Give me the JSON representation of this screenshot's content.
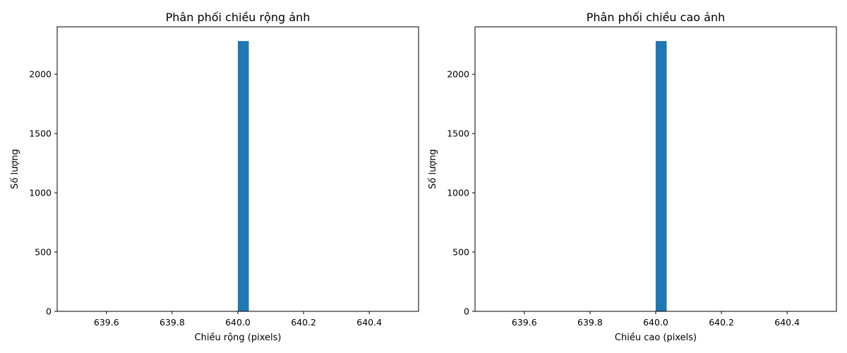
{
  "chart_data": [
    {
      "type": "bar",
      "title": "Phân phối chiều rộng ảnh",
      "xlabel": "Chiều rộng (pixels)",
      "ylabel": "Số lượng",
      "xlim": [
        639.45,
        640.55
      ],
      "ylim": [
        0,
        2400
      ],
      "xticks": [
        639.6,
        639.8,
        640.0,
        640.2,
        640.4
      ],
      "xtick_labels": [
        "639.6",
        "639.8",
        "640.0",
        "640.2",
        "640.4"
      ],
      "yticks": [
        0,
        500,
        1000,
        1500,
        2000
      ],
      "ytick_labels": [
        "0",
        "500",
        "1000",
        "1500",
        "2000"
      ],
      "bars": [
        {
          "x_start": 640.0,
          "x_end": 640.0333,
          "value": 2280
        }
      ],
      "color": "#1f77b4",
      "grid": false
    },
    {
      "type": "bar",
      "title": "Phân phối chiều cao ảnh",
      "xlabel": "Chiều cao (pixels)",
      "ylabel": "Số lượng",
      "xlim": [
        639.45,
        640.55
      ],
      "ylim": [
        0,
        2400
      ],
      "xticks": [
        639.6,
        639.8,
        640.0,
        640.2,
        640.4
      ],
      "xtick_labels": [
        "639.6",
        "639.8",
        "640.0",
        "640.2",
        "640.4"
      ],
      "yticks": [
        0,
        500,
        1000,
        1500,
        2000
      ],
      "ytick_labels": [
        "0",
        "500",
        "1000",
        "1500",
        "2000"
      ],
      "bars": [
        {
          "x_start": 640.0,
          "x_end": 640.0333,
          "value": 2280
        }
      ],
      "color": "#1f77b4",
      "grid": false
    }
  ]
}
